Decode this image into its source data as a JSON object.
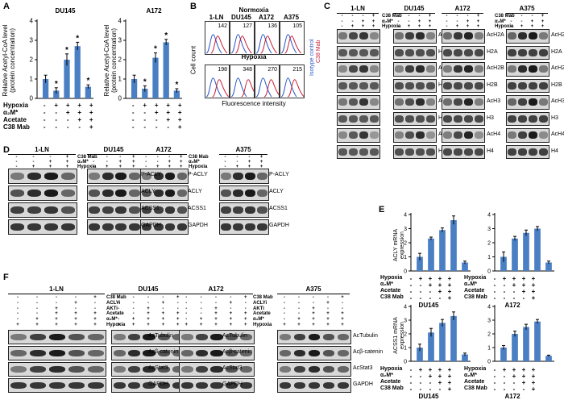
{
  "panel_labels": {
    "A": "A",
    "B": "B",
    "C": "C",
    "D": "D",
    "E": "E",
    "F": "F"
  },
  "symbols": {
    "plus": "+",
    "minus": "-",
    "star": "*"
  },
  "cells": {
    "lnc": "1-LN",
    "du": "DU145",
    "a172": "A172",
    "a375": "A375"
  },
  "cond": {
    "hypoxia": "Hypoxia",
    "am": "α₂M*",
    "acetate": "Acetate",
    "c38": "C38 Mab",
    "aclyi": "ACLYi",
    "akti": "AKTi"
  },
  "panelA": {
    "ylabel1": "Relative Acetyl-CoA level",
    "ylabel2": "(protein concentration)"
  },
  "panelB": {
    "normoxia": "Normoxia",
    "hypoxia": "Hypoxia",
    "ylabel": "Cell count",
    "xlabel": "Fluorescence intensity",
    "legend1": "Isotype control",
    "legend2": "C38 Mab",
    "norm_vals": [
      "142",
      "127",
      "136",
      "105"
    ],
    "hyp_vals": [
      "198",
      "348",
      "270",
      "215"
    ]
  },
  "panelC": {
    "rows": [
      "AcH2A",
      "H2A",
      "AcH2B",
      "H2B",
      "AcH3",
      "H3",
      "AcH4",
      "H4"
    ]
  },
  "panelD": {
    "rows": [
      "P-ACLY",
      "ACLY",
      "ACSS1",
      "GAPDH"
    ]
  },
  "panelE": {
    "ylabel_acly1": "ACLY mRNA",
    "ylabel_acly2": "expression",
    "ylabel_acss1": "ACSS1 mRNA",
    "ylabel_acss2": "expression"
  },
  "panelF": {
    "rows": [
      "AcTubulin",
      "Acβ-catenin",
      "AcStat3",
      "GAPDH"
    ]
  },
  "chart_data": [
    {
      "type": "bar",
      "panel": "A",
      "title": "DU145",
      "ylabel": "Relative Acetyl-CoA level (protein concentration)",
      "ylim": [
        0,
        4
      ],
      "yticks": [
        "0",
        "1",
        "2",
        "3",
        "4"
      ],
      "categories": [
        "control",
        "Hypoxia",
        "Hypoxia+α2M*",
        "Hypoxia+α2M*+Acetate",
        "Hypoxia+α2M*+Acetate+C38 Mab"
      ],
      "values": [
        1.0,
        0.4,
        2.0,
        2.7,
        0.6
      ],
      "errors": [
        0.2,
        0.15,
        0.3,
        0.2,
        0.1
      ],
      "significant": [
        false,
        true,
        true,
        true,
        true
      ]
    },
    {
      "type": "bar",
      "panel": "A",
      "title": "A172",
      "ylabel": "Relative Acetyl-CoA level (protein concentration)",
      "ylim": [
        0,
        4
      ],
      "yticks": [
        "0",
        "1",
        "2",
        "3",
        "4"
      ],
      "categories": [
        "control",
        "Hypoxia",
        "Hypoxia+α2M*",
        "Hypoxia+α2M*+Acetate",
        "Hypoxia+α2M*+Acetate+C38 Mab"
      ],
      "values": [
        1.0,
        0.5,
        2.1,
        2.9,
        0.4
      ],
      "errors": [
        0.2,
        0.15,
        0.25,
        0.15,
        0.1
      ],
      "significant": [
        false,
        true,
        true,
        true,
        true
      ]
    },
    {
      "type": "bar",
      "panel": "E",
      "title": "DU145",
      "ylabel": "ACLY mRNA expression",
      "ylim": [
        0,
        4
      ],
      "yticks": [
        "0",
        "1",
        "2",
        "3",
        "4"
      ],
      "categories": [
        "control",
        "Hypoxia",
        "Hypoxia+α2M*",
        "Hypoxia+α2M*+Acetate",
        "Hypoxia+α2M*+Acetate+C38 Mab"
      ],
      "values": [
        1.0,
        2.3,
        2.9,
        3.6,
        0.6
      ],
      "errors": [
        0.25,
        0.1,
        0.15,
        0.3,
        0.1
      ]
    },
    {
      "type": "bar",
      "panel": "E",
      "title": "A172",
      "ylabel": "ACLY mRNA expression",
      "ylim": [
        0,
        4
      ],
      "yticks": [
        "0",
        "1",
        "2",
        "3",
        "4"
      ],
      "categories": [
        "control",
        "Hypoxia",
        "Hypoxia+α2M*",
        "Hypoxia+α2M*+Acetate",
        "Hypoxia+α2M*+Acetate+C38 Mab"
      ],
      "values": [
        1.0,
        2.3,
        2.7,
        3.0,
        0.6
      ],
      "errors": [
        0.35,
        0.15,
        0.2,
        0.15,
        0.1
      ]
    },
    {
      "type": "bar",
      "panel": "E",
      "title": "DU145",
      "ylabel": "ACSS1 mRNA expression",
      "ylim": [
        0,
        4
      ],
      "yticks": [
        "0",
        "1",
        "2",
        "3",
        "4"
      ],
      "categories": [
        "control",
        "Hypoxia",
        "Hypoxia+α2M*",
        "Hypoxia+α2M*+Acetate",
        "Hypoxia+α2M*+Acetate+C38 Mab"
      ],
      "values": [
        1.0,
        2.1,
        2.8,
        3.3,
        0.5
      ],
      "errors": [
        0.25,
        0.3,
        0.25,
        0.3,
        0.1
      ]
    },
    {
      "type": "bar",
      "panel": "E",
      "title": "A172",
      "ylabel": "ACSS1 mRNA expression",
      "ylim": [
        0,
        4
      ],
      "yticks": [
        "0",
        "1",
        "2",
        "3",
        "4"
      ],
      "categories": [
        "control",
        "Hypoxia",
        "Hypoxia+α2M*",
        "Hypoxia+α2M*+Acetate",
        "Hypoxia+α2M*+Acetate+C38 Mab"
      ],
      "values": [
        1.0,
        2.0,
        2.5,
        2.9,
        0.4
      ],
      "errors": [
        0.15,
        0.2,
        0.2,
        0.15,
        0.05
      ]
    }
  ]
}
